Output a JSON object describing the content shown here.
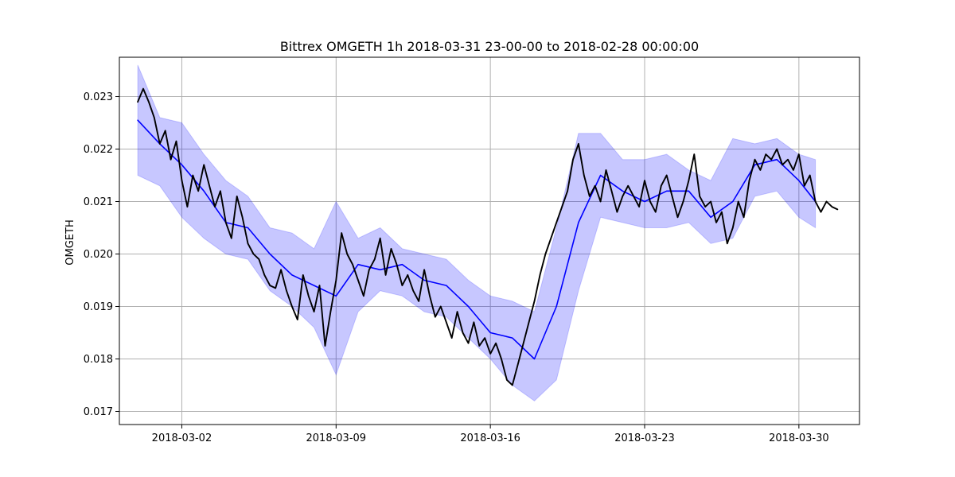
{
  "chart_data": {
    "type": "line",
    "title": "Bittrex OMGETH 1h 2018-03-31 23-00-00 to 2018-02-28 00:00:00",
    "xlabel": "",
    "ylabel": "OMGETH",
    "x_ticks": [
      "2018-03-02",
      "2018-03-09",
      "2018-03-16",
      "2018-03-23",
      "2018-03-30"
    ],
    "y_ticks": [
      "0.017",
      "0.018",
      "0.019",
      "0.020",
      "0.021",
      "0.022",
      "0.023"
    ],
    "xlim": [
      "2018-02-27T04:00",
      "2018-04-01T18:00"
    ],
    "ylim": [
      0.01675,
      0.02375
    ],
    "grid": true,
    "colors": {
      "price": "#000000",
      "mean": "#0000ff",
      "band": "#0000ff"
    },
    "series": [
      {
        "role": "price",
        "x": [
          "2018-02-28T00:00",
          "2018-02-28T06:00",
          "2018-02-28T12:00",
          "2018-02-28T18:00",
          "2018-03-01T00:00",
          "2018-03-01T06:00",
          "2018-03-01T12:00",
          "2018-03-01T18:00",
          "2018-03-02T00:00",
          "2018-03-02T06:00",
          "2018-03-02T12:00",
          "2018-03-02T18:00",
          "2018-03-03T00:00",
          "2018-03-03T06:00",
          "2018-03-03T12:00",
          "2018-03-03T18:00",
          "2018-03-04T00:00",
          "2018-03-04T06:00",
          "2018-03-04T12:00",
          "2018-03-04T18:00",
          "2018-03-05T00:00",
          "2018-03-05T06:00",
          "2018-03-05T12:00",
          "2018-03-05T18:00",
          "2018-03-06T00:00",
          "2018-03-06T06:00",
          "2018-03-06T12:00",
          "2018-03-06T18:00",
          "2018-03-07T00:00",
          "2018-03-07T06:00",
          "2018-03-07T12:00",
          "2018-03-07T18:00",
          "2018-03-08T00:00",
          "2018-03-08T06:00",
          "2018-03-08T12:00",
          "2018-03-08T18:00",
          "2018-03-09T00:00",
          "2018-03-09T06:00",
          "2018-03-09T12:00",
          "2018-03-09T18:00",
          "2018-03-10T00:00",
          "2018-03-10T06:00",
          "2018-03-10T12:00",
          "2018-03-10T18:00",
          "2018-03-11T00:00",
          "2018-03-11T06:00",
          "2018-03-11T12:00",
          "2018-03-11T18:00",
          "2018-03-12T00:00",
          "2018-03-12T06:00",
          "2018-03-12T12:00",
          "2018-03-12T18:00",
          "2018-03-13T00:00",
          "2018-03-13T06:00",
          "2018-03-13T12:00",
          "2018-03-13T18:00",
          "2018-03-14T00:00",
          "2018-03-14T06:00",
          "2018-03-14T12:00",
          "2018-03-14T18:00",
          "2018-03-15T00:00",
          "2018-03-15T06:00",
          "2018-03-15T12:00",
          "2018-03-15T18:00",
          "2018-03-16T00:00",
          "2018-03-16T06:00",
          "2018-03-16T12:00",
          "2018-03-16T18:00",
          "2018-03-17T00:00",
          "2018-03-17T06:00",
          "2018-03-17T12:00",
          "2018-03-17T18:00",
          "2018-03-18T00:00",
          "2018-03-18T06:00",
          "2018-03-18T12:00",
          "2018-03-18T18:00",
          "2018-03-19T00:00",
          "2018-03-19T06:00",
          "2018-03-19T12:00",
          "2018-03-19T18:00",
          "2018-03-20T00:00",
          "2018-03-20T06:00",
          "2018-03-20T12:00",
          "2018-03-20T18:00",
          "2018-03-21T00:00",
          "2018-03-21T06:00",
          "2018-03-21T12:00",
          "2018-03-21T18:00",
          "2018-03-22T00:00",
          "2018-03-22T06:00",
          "2018-03-22T12:00",
          "2018-03-22T18:00",
          "2018-03-23T00:00",
          "2018-03-23T06:00",
          "2018-03-23T12:00",
          "2018-03-23T18:00",
          "2018-03-24T00:00",
          "2018-03-24T06:00",
          "2018-03-24T12:00",
          "2018-03-24T18:00",
          "2018-03-25T00:00",
          "2018-03-25T06:00",
          "2018-03-25T12:00",
          "2018-03-25T18:00",
          "2018-03-26T00:00",
          "2018-03-26T06:00",
          "2018-03-26T12:00",
          "2018-03-26T18:00",
          "2018-03-27T00:00",
          "2018-03-27T06:00",
          "2018-03-27T12:00",
          "2018-03-27T18:00",
          "2018-03-28T00:00",
          "2018-03-28T06:00",
          "2018-03-28T12:00",
          "2018-03-28T18:00",
          "2018-03-29T00:00",
          "2018-03-29T06:00",
          "2018-03-29T12:00",
          "2018-03-29T18:00",
          "2018-03-30T00:00",
          "2018-03-30T06:00",
          "2018-03-30T12:00",
          "2018-03-30T18:00",
          "2018-03-31T00:00",
          "2018-03-31T06:00",
          "2018-03-31T12:00",
          "2018-03-31T18:00"
        ],
        "values": [
          0.0229,
          0.02315,
          0.0229,
          0.0226,
          0.0221,
          0.02235,
          0.0218,
          0.02215,
          0.0214,
          0.0209,
          0.0215,
          0.0212,
          0.0217,
          0.0213,
          0.0209,
          0.0212,
          0.0206,
          0.0203,
          0.0211,
          0.0207,
          0.0202,
          0.02,
          0.0199,
          0.0196,
          0.0194,
          0.01935,
          0.0197,
          0.0193,
          0.019,
          0.01875,
          0.0196,
          0.0192,
          0.0189,
          0.0194,
          0.01825,
          0.0189,
          0.0195,
          0.0204,
          0.02,
          0.0198,
          0.0195,
          0.0192,
          0.0197,
          0.0199,
          0.0203,
          0.0196,
          0.0201,
          0.0198,
          0.0194,
          0.0196,
          0.0193,
          0.0191,
          0.0197,
          0.0192,
          0.0188,
          0.019,
          0.0187,
          0.0184,
          0.0189,
          0.0185,
          0.0183,
          0.0187,
          0.01825,
          0.0184,
          0.0181,
          0.0183,
          0.018,
          0.0176,
          0.0175,
          0.0179,
          0.0183,
          0.0187,
          0.0191,
          0.0196,
          0.02,
          0.0203,
          0.0206,
          0.0209,
          0.0212,
          0.0218,
          0.0221,
          0.0215,
          0.0211,
          0.0213,
          0.021,
          0.0216,
          0.0212,
          0.0208,
          0.0211,
          0.0213,
          0.0211,
          0.0209,
          0.0214,
          0.021,
          0.0208,
          0.0213,
          0.0215,
          0.0211,
          0.0207,
          0.021,
          0.0214,
          0.0219,
          0.0211,
          0.0209,
          0.021,
          0.0206,
          0.0208,
          0.0202,
          0.0205,
          0.021,
          0.0207,
          0.0214,
          0.0218,
          0.0216,
          0.0219,
          0.0218,
          0.022,
          0.0217,
          0.0218,
          0.0216,
          0.0219,
          0.0213,
          0.0215,
          0.021,
          0.0208,
          0.021,
          0.0209,
          0.02085
        ]
      },
      {
        "role": "mean",
        "x": [
          "2018-02-28T00:00",
          "2018-03-01T00:00",
          "2018-03-02T00:00",
          "2018-03-03T00:00",
          "2018-03-04T00:00",
          "2018-03-05T00:00",
          "2018-03-06T00:00",
          "2018-03-07T00:00",
          "2018-03-08T00:00",
          "2018-03-09T00:00",
          "2018-03-10T00:00",
          "2018-03-11T00:00",
          "2018-03-12T00:00",
          "2018-03-13T00:00",
          "2018-03-14T00:00",
          "2018-03-15T00:00",
          "2018-03-16T00:00",
          "2018-03-17T00:00",
          "2018-03-18T00:00",
          "2018-03-19T00:00",
          "2018-03-20T00:00",
          "2018-03-21T00:00",
          "2018-03-22T00:00",
          "2018-03-23T00:00",
          "2018-03-24T00:00",
          "2018-03-25T00:00",
          "2018-03-26T00:00",
          "2018-03-27T00:00",
          "2018-03-28T00:00",
          "2018-03-29T00:00",
          "2018-03-30T00:00",
          "2018-03-30T18:00"
        ],
        "values": [
          0.02255,
          0.0221,
          0.0217,
          0.0212,
          0.0206,
          0.0205,
          0.02,
          0.0196,
          0.0194,
          0.0192,
          0.0198,
          0.0197,
          0.0198,
          0.0195,
          0.0194,
          0.019,
          0.0185,
          0.0184,
          0.018,
          0.019,
          0.0206,
          0.0215,
          0.0212,
          0.021,
          0.0212,
          0.0212,
          0.0207,
          0.021,
          0.0217,
          0.0218,
          0.0214,
          0.021
        ]
      }
    ],
    "band": {
      "x": [
        "2018-02-28T00:00",
        "2018-03-01T00:00",
        "2018-03-02T00:00",
        "2018-03-03T00:00",
        "2018-03-04T00:00",
        "2018-03-05T00:00",
        "2018-03-06T00:00",
        "2018-03-07T00:00",
        "2018-03-08T00:00",
        "2018-03-09T00:00",
        "2018-03-10T00:00",
        "2018-03-11T00:00",
        "2018-03-12T00:00",
        "2018-03-13T00:00",
        "2018-03-14T00:00",
        "2018-03-15T00:00",
        "2018-03-16T00:00",
        "2018-03-17T00:00",
        "2018-03-18T00:00",
        "2018-03-19T00:00",
        "2018-03-20T00:00",
        "2018-03-21T00:00",
        "2018-03-22T00:00",
        "2018-03-23T00:00",
        "2018-03-24T00:00",
        "2018-03-25T00:00",
        "2018-03-26T00:00",
        "2018-03-27T00:00",
        "2018-03-28T00:00",
        "2018-03-29T00:00",
        "2018-03-30T00:00",
        "2018-03-30T18:00"
      ],
      "upper": [
        0.0236,
        0.0226,
        0.0225,
        0.0219,
        0.0214,
        0.0211,
        0.0205,
        0.0204,
        0.0201,
        0.021,
        0.0203,
        0.0205,
        0.0201,
        0.02,
        0.0199,
        0.0195,
        0.0192,
        0.0191,
        0.0189,
        0.0205,
        0.0223,
        0.0223,
        0.0218,
        0.0218,
        0.0219,
        0.0216,
        0.0214,
        0.0222,
        0.0221,
        0.0222,
        0.0219,
        0.0218
      ],
      "lower": [
        0.0215,
        0.0213,
        0.0207,
        0.0203,
        0.02,
        0.0199,
        0.0193,
        0.019,
        0.0186,
        0.0177,
        0.0189,
        0.0193,
        0.0192,
        0.0189,
        0.0188,
        0.0184,
        0.018,
        0.0175,
        0.0172,
        0.0176,
        0.0193,
        0.0207,
        0.0206,
        0.0205,
        0.0205,
        0.0206,
        0.0202,
        0.0203,
        0.0211,
        0.0212,
        0.0207,
        0.0205
      ]
    }
  }
}
